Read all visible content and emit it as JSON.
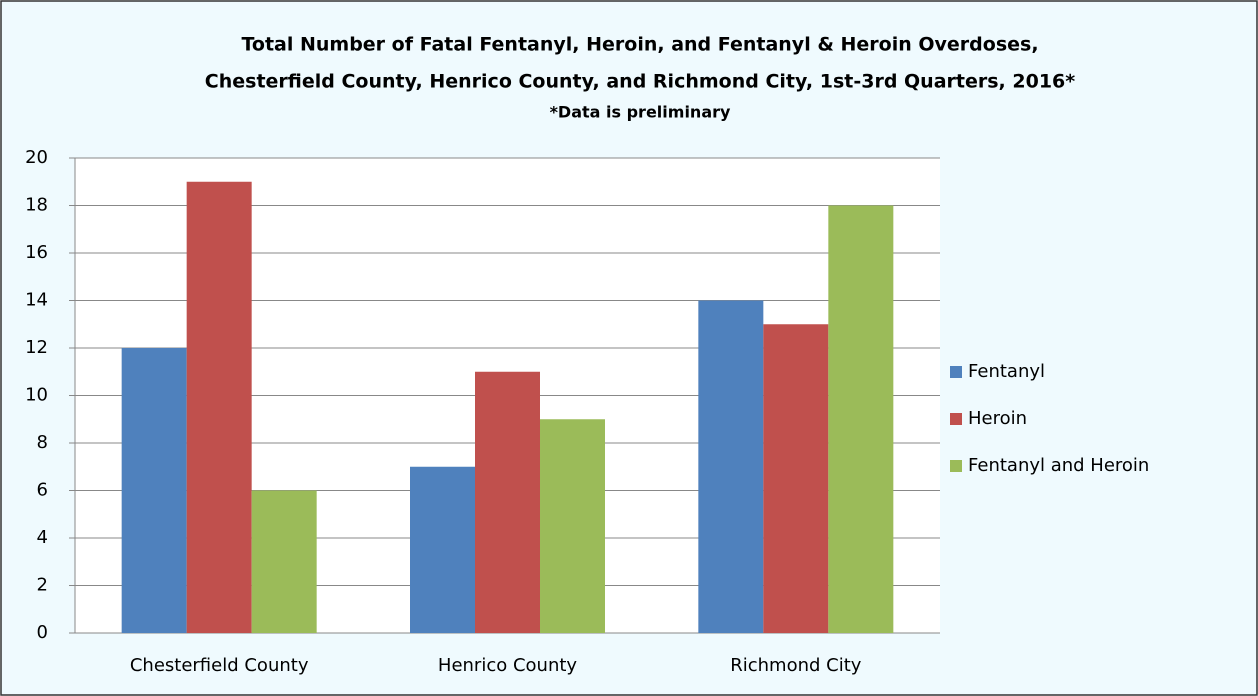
{
  "chart_data": {
    "type": "bar",
    "title": [
      "Total Number of Fatal Fentanyl, Heroin, and Fentanyl & Heroin Overdoses,",
      "Chesterfield County, Henrico County, and Richmond City, 1st-3rd Quarters, 2016*"
    ],
    "subtitle": "*Data is preliminary",
    "categories": [
      "Chesterfield County",
      "Henrico County",
      "Richmond City"
    ],
    "series": [
      {
        "name": "Fentanyl",
        "color": "#4f81bd",
        "values": [
          12,
          7,
          14
        ]
      },
      {
        "name": "Heroin",
        "color": "#c0504d",
        "values": [
          19,
          11,
          13
        ]
      },
      {
        "name": "Fentanyl and Heroin",
        "color": "#9bbb59",
        "values": [
          6,
          9,
          18
        ]
      }
    ],
    "ylim": [
      0,
      20
    ],
    "yticks": [
      0,
      2,
      4,
      6,
      8,
      10,
      12,
      14,
      16,
      18,
      20
    ],
    "grid": true,
    "legend": "right"
  }
}
